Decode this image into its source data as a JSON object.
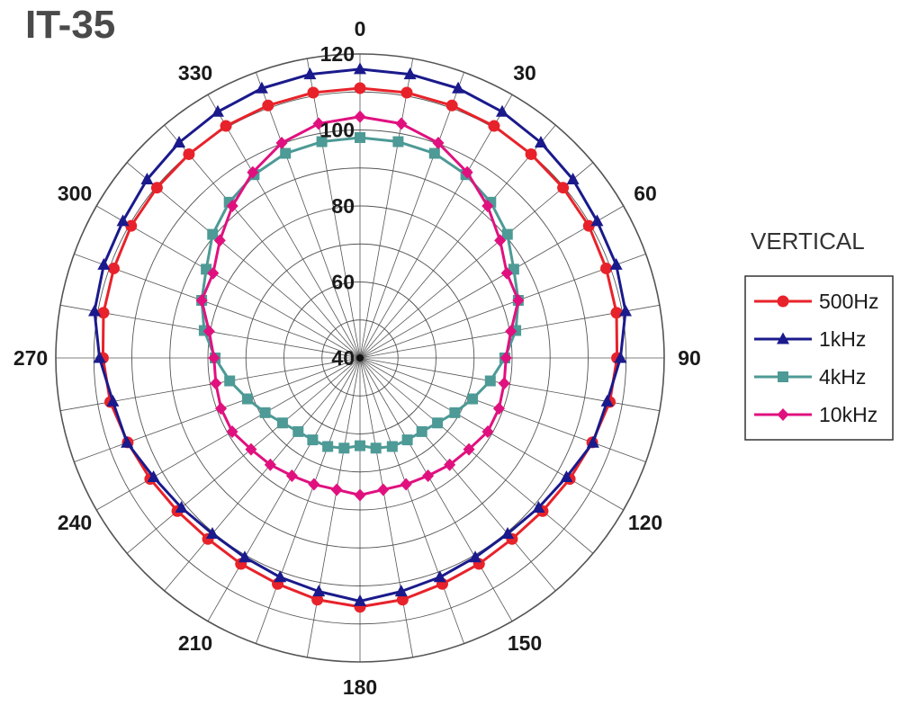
{
  "chart_data": {
    "type": "polar",
    "title": "IT-35",
    "legend_title": "VERTICAL",
    "legend_position": "right",
    "angle_labels": [
      "0",
      "30",
      "60",
      "90",
      "120",
      "150",
      "180",
      "210",
      "240",
      "270",
      "300",
      "330"
    ],
    "radial_labels": [
      "40",
      "60",
      "80",
      "100",
      "120"
    ],
    "radial_range": [
      40,
      120
    ],
    "angle_step_deg": 10,
    "grid": true,
    "series": [
      {
        "name": "500Hz",
        "color": "#e8222a",
        "marker": "circle",
        "values": [
          111,
          110.9,
          110.7,
          110.5,
          110,
          109.7,
          109.5,
          108.9,
          108.5,
          107.6,
          106.7,
          105,
          103.7,
          102.7,
          102.2,
          102.6,
          103.3,
          104.6,
          105.5,
          104.6,
          103.3,
          102.6,
          102.2,
          102.7,
          103.7,
          105,
          106.7,
          107.6,
          108.5,
          108.9,
          109.5,
          109.7,
          110,
          110.5,
          110.7,
          110.9
        ]
      },
      {
        "name": "1kHz",
        "color": "#1a1a8c",
        "marker": "triangle",
        "values": [
          116,
          115.8,
          115.5,
          114.8,
          114,
          113.1,
          112,
          111.7,
          110.9,
          108.5,
          106,
          105.2,
          102.7,
          101.3,
          100.4,
          100.6,
          101.4,
          102.4,
          104,
          102.4,
          101.4,
          100.6,
          100.4,
          101.3,
          102.7,
          105.2,
          106,
          108.5,
          110.9,
          111.7,
          112,
          113.1,
          114,
          114.8,
          115.5,
          115.8
        ]
      },
      {
        "name": "4kHz",
        "color": "#4d9a96",
        "marker": "square",
        "values": [
          98,
          97.8,
          97.3,
          95.7,
          93.5,
          90.6,
          86.7,
          84.3,
          81.6,
          78.1,
          74.8,
          71.5,
          68.8,
          66.6,
          65.3,
          64.9,
          64.8,
          64.1,
          63.1,
          64.1,
          64.8,
          64.9,
          65.3,
          66.6,
          68.8,
          71.5,
          74.8,
          78.1,
          81.6,
          84.3,
          86.7,
          90.6,
          93.5,
          95.7,
          97.3,
          97.8
        ]
      },
      {
        "name": "10kHz",
        "color": "#e0117f",
        "marker": "diamond",
        "values": [
          103.5,
          102.6,
          100.2,
          96.4,
          92.2,
          88.1,
          84.6,
          84.3,
          80.3,
          78.4,
          78.5,
          78.9,
          78.8,
          77.4,
          76.7,
          75.8,
          75.4,
          75.2,
          76.1,
          75.2,
          75.4,
          75.8,
          76.7,
          77.4,
          78.8,
          78.9,
          78.5,
          78.4,
          80.3,
          84.3,
          84.6,
          88.1,
          92.2,
          96.4,
          100.2,
          102.6
        ]
      }
    ]
  }
}
